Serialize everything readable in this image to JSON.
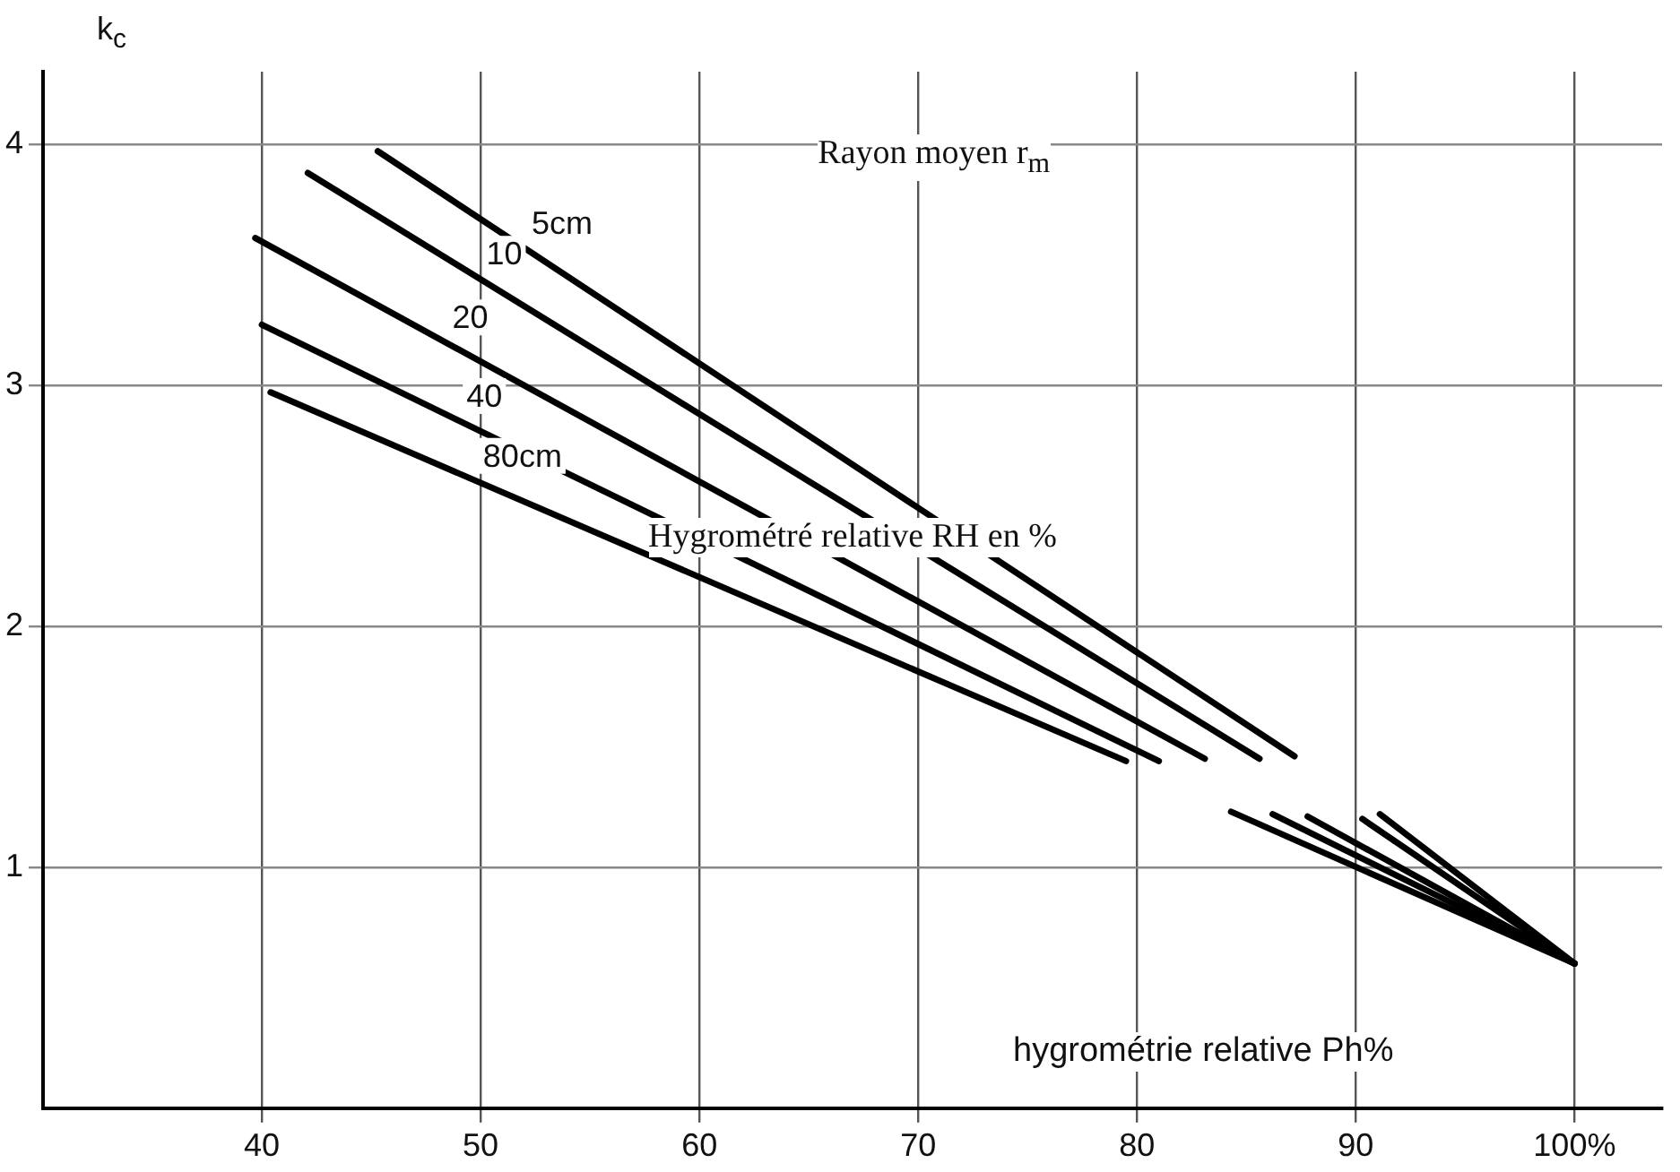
{
  "chart_data": {
    "type": "line",
    "xlabel": "hygrométrie relative Ph%",
    "ylabel": "k$_{c}$",
    "annotations": [
      "Rayon moyen r$_{m}$",
      "Hygrométré relative RH en %"
    ],
    "xlim": [
      30,
      104
    ],
    "ylim": [
      0,
      4.3
    ],
    "xticks": [
      40,
      50,
      60,
      70,
      80,
      90,
      {
        "value": 100,
        "label": "100%"
      }
    ],
    "yticks": [
      1,
      2,
      3,
      4
    ],
    "grid": true,
    "legend": false,
    "marker": "none",
    "line_style": "solid",
    "series": [
      {
        "name": "5cm",
        "color": "#000000",
        "x": [
          45.3,
          87.2,
          89,
          91.1,
          100
        ],
        "values": [
          3.97,
          1.46,
          null,
          1.22,
          0.6
        ]
      },
      {
        "name": "10",
        "color": "#000000",
        "x": [
          42.1,
          85.6,
          88,
          90.3,
          100
        ],
        "values": [
          3.88,
          1.45,
          null,
          1.2,
          0.6
        ]
      },
      {
        "name": "20",
        "color": "#000000",
        "x": [
          39.7,
          83.1,
          85,
          87.8,
          100
        ],
        "values": [
          3.61,
          1.45,
          null,
          1.21,
          0.6
        ]
      },
      {
        "name": "40",
        "color": "#000000",
        "x": [
          40,
          81,
          83,
          86.2,
          100
        ],
        "values": [
          3.25,
          1.44,
          null,
          1.22,
          0.6
        ]
      },
      {
        "name": "80cm",
        "color": "#000000",
        "x": [
          40.4,
          79.5,
          82,
          84.3,
          100
        ],
        "values": [
          2.97,
          1.44,
          null,
          1.23,
          0.6
        ]
      }
    ]
  }
}
